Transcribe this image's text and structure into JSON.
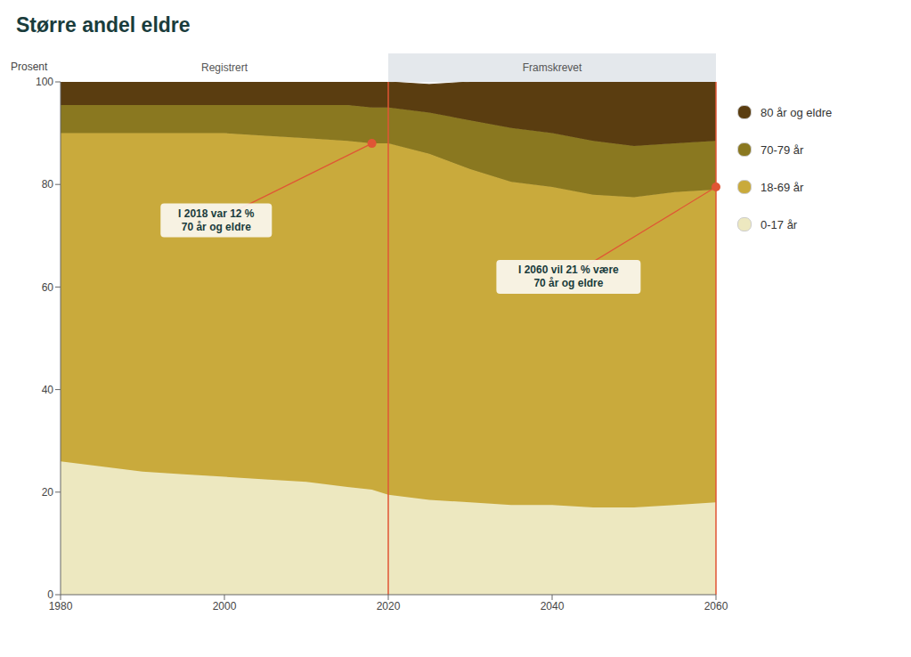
{
  "chart_data": {
    "type": "area",
    "stacked": true,
    "title": "Større andel eldre",
    "y_label": "Prosent",
    "x": [
      1980,
      1985,
      1990,
      1995,
      2000,
      2005,
      2010,
      2015,
      2018,
      2020,
      2025,
      2030,
      2035,
      2040,
      2045,
      2050,
      2055,
      2060
    ],
    "series": [
      {
        "name": "0-17 år",
        "color": "#ede8c0",
        "values": [
          26.0,
          25.0,
          24.0,
          23.5,
          23.0,
          22.5,
          22.0,
          21.0,
          20.5,
          19.5,
          18.5,
          18.0,
          17.5,
          17.5,
          17.0,
          17.0,
          17.5,
          18.0
        ]
      },
      {
        "name": "18-69 år",
        "color": "#c9aa3c",
        "values": [
          64.0,
          65.0,
          66.0,
          66.5,
          67.0,
          67.0,
          67.0,
          67.5,
          67.5,
          68.5,
          67.5,
          65.0,
          63.0,
          62.0,
          61.0,
          60.5,
          61.0,
          61.0
        ]
      },
      {
        "name": "70-79 år",
        "color": "#8a7820",
        "values": [
          5.5,
          5.5,
          5.5,
          5.5,
          5.5,
          6.0,
          6.5,
          7.0,
          7.0,
          7.0,
          8.0,
          9.5,
          10.5,
          10.5,
          10.5,
          10.0,
          9.5,
          9.5
        ]
      },
      {
        "name": "80 år og eldre",
        "color": "#5a3d10",
        "values": [
          4.5,
          4.5,
          4.5,
          4.5,
          4.5,
          4.5,
          4.5,
          4.5,
          5.0,
          5.0,
          5.5,
          7.5,
          9.0,
          10.0,
          11.5,
          12.5,
          12.0,
          11.5
        ]
      }
    ],
    "xlim": [
      1980,
      2060
    ],
    "xticks": [
      1980,
      2000,
      2020,
      2040,
      2060
    ],
    "ylim": [
      0,
      100
    ],
    "yticks": [
      0,
      20,
      40,
      60,
      80,
      100
    ],
    "grid": false,
    "legend": "right",
    "spans": [
      {
        "label": "Registrert",
        "from": 1980,
        "to": 2020
      },
      {
        "label": "Framskrevet",
        "from": 2020,
        "to": 2060,
        "color": "#e4e8ec"
      }
    ],
    "vlines": [
      {
        "x": 2020,
        "color": "#e05535"
      },
      {
        "x": 2060,
        "color": "#e05535"
      }
    ],
    "annotations": [
      {
        "text": "I 2018 var 12 %\n70 år og eldre",
        "x": 2018,
        "y": 88.0,
        "text_x": 1999,
        "text_y": 73,
        "color": "#e05535"
      },
      {
        "text": "I 2060 vil 21 % være\n70 år og eldre",
        "x": 2060,
        "y": 79.5,
        "text_x": 2042,
        "text_y": 62,
        "color": "#e05535"
      }
    ]
  }
}
